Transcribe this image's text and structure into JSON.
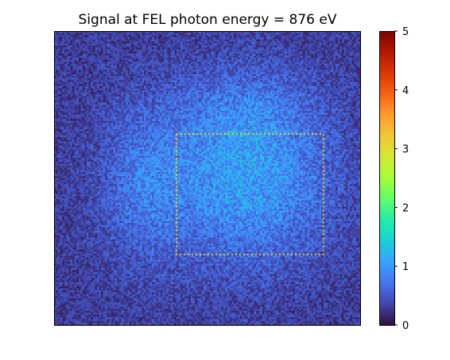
{
  "chart_data": {
    "type": "heatmap",
    "title": "Signal at FEL photon energy = 876 eV",
    "xlabel": "",
    "ylabel": "",
    "x_ticks_visible": false,
    "y_ticks_visible": false,
    "colormap": "turbo",
    "colormap_stops": [
      "#30123b",
      "#4145ab",
      "#4675ed",
      "#39a2fc",
      "#1bcfd4",
      "#24eca6",
      "#61fc6c",
      "#a4fc3b",
      "#d1e834",
      "#f3c63a",
      "#fe9b2d",
      "#f36315",
      "#d93806",
      "#b11901",
      "#7a0402"
    ],
    "colorbar": {
      "vmin": 0,
      "vmax": 5,
      "ticks": [
        0,
        1,
        2,
        3,
        4,
        5
      ],
      "tick_labels": [
        "0",
        "1",
        "2",
        "3",
        "4",
        "5"
      ],
      "placement": "right"
    },
    "image": {
      "pixel_grid": [
        150,
        144
      ],
      "background_level": 0.3,
      "noise": "per-pixel speckle (shot noise)",
      "blobs": [
        {
          "description": "main signal lobe",
          "center": [
            0.63,
            0.5
          ],
          "sigma": [
            0.19,
            0.2
          ],
          "amplitude": 0.75
        },
        {
          "description": "left signal lobe",
          "center": [
            0.29,
            0.52
          ],
          "sigma": [
            0.1,
            0.18
          ],
          "amplitude": 0.38
        },
        {
          "description": "upper signal lobe",
          "center": [
            0.62,
            0.26
          ],
          "sigma": [
            0.16,
            0.09
          ],
          "amplitude": 0.22
        }
      ],
      "peak_value_approx": 1.2
    },
    "annotations": [
      {
        "type": "dotted-rectangle",
        "color": "#e8d21d",
        "region_fraction": {
          "x0": 0.4,
          "y0": 0.35,
          "x1": 0.88,
          "y1": 0.76
        }
      }
    ]
  }
}
